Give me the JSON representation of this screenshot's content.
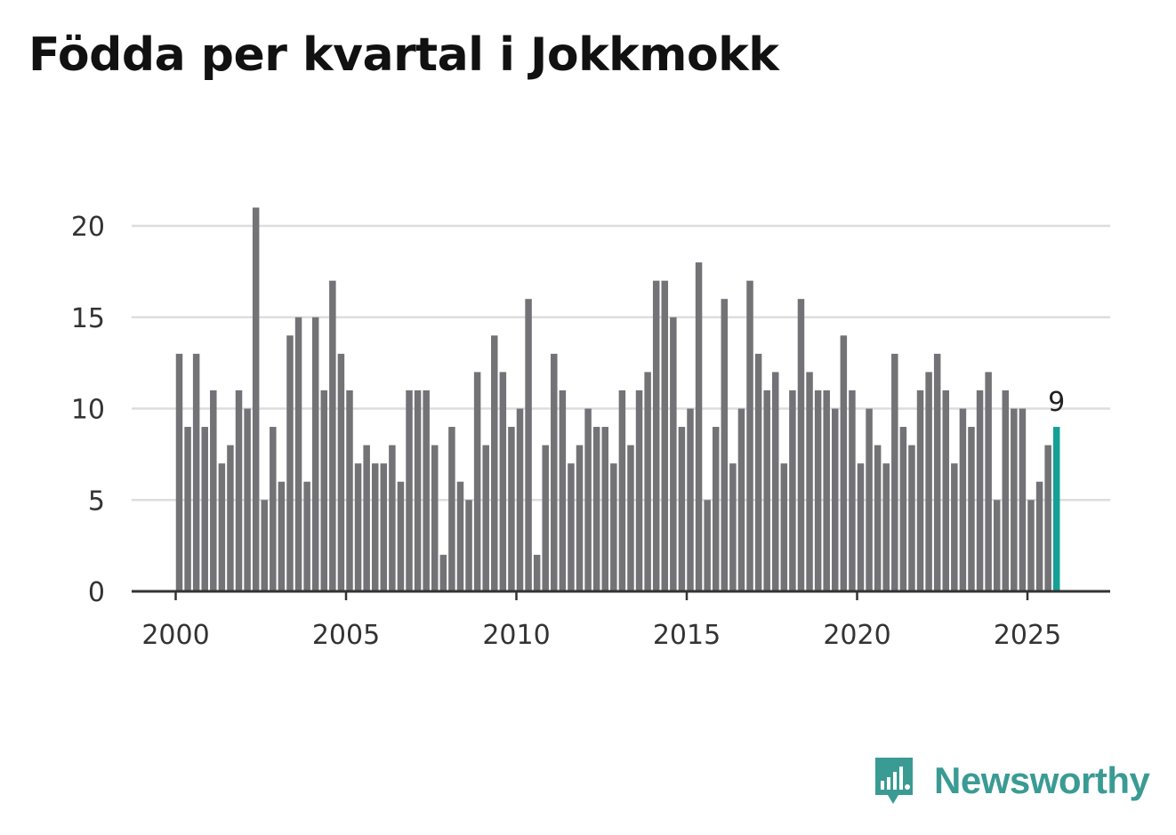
{
  "title": "Födda per kvartal i Jokkmokk",
  "brand": {
    "name": "Newsworthy",
    "color": "#3a9b94"
  },
  "chart_data": {
    "type": "bar",
    "title": "Födda per kvartal i Jokkmokk",
    "xlabel": "",
    "ylabel": "",
    "ylim": [
      0,
      21
    ],
    "yticks": [
      0,
      5,
      10,
      15,
      20
    ],
    "xticks": [
      2000,
      2005,
      2010,
      2015,
      2020,
      2025
    ],
    "grid": true,
    "colors": {
      "bar": "#737276",
      "highlight": "#14a096",
      "grid": "#dddddd",
      "axis": "#333333"
    },
    "categories": [
      "2000 Q1",
      "2000 Q2",
      "2000 Q3",
      "2000 Q4",
      "2001 Q1",
      "2001 Q2",
      "2001 Q3",
      "2001 Q4",
      "2002 Q1",
      "2002 Q2",
      "2002 Q3",
      "2002 Q4",
      "2003 Q1",
      "2003 Q2",
      "2003 Q3",
      "2003 Q4",
      "2004 Q1",
      "2004 Q2",
      "2004 Q3",
      "2004 Q4",
      "2005 Q1",
      "2005 Q2",
      "2005 Q3",
      "2005 Q4",
      "2006 Q1",
      "2006 Q2",
      "2006 Q3",
      "2006 Q4",
      "2007 Q1",
      "2007 Q2",
      "2007 Q3",
      "2007 Q4",
      "2008 Q1",
      "2008 Q2",
      "2008 Q3",
      "2008 Q4",
      "2009 Q1",
      "2009 Q2",
      "2009 Q3",
      "2009 Q4",
      "2010 Q1",
      "2010 Q2",
      "2010 Q3",
      "2010 Q4",
      "2011 Q1",
      "2011 Q2",
      "2011 Q3",
      "2011 Q4",
      "2012 Q1",
      "2012 Q2",
      "2012 Q3",
      "2012 Q4",
      "2013 Q1",
      "2013 Q2",
      "2013 Q3",
      "2013 Q4",
      "2014 Q1",
      "2014 Q2",
      "2014 Q3",
      "2014 Q4",
      "2015 Q1",
      "2015 Q2",
      "2015 Q3",
      "2015 Q4",
      "2016 Q1",
      "2016 Q2",
      "2016 Q3",
      "2016 Q4",
      "2017 Q1",
      "2017 Q2",
      "2017 Q3",
      "2017 Q4",
      "2018 Q1",
      "2018 Q2",
      "2018 Q3",
      "2018 Q4",
      "2019 Q1",
      "2019 Q2",
      "2019 Q3",
      "2019 Q4",
      "2020 Q1",
      "2020 Q2",
      "2020 Q3",
      "2020 Q4",
      "2021 Q1",
      "2021 Q2",
      "2021 Q3",
      "2021 Q4",
      "2022 Q1",
      "2022 Q2",
      "2022 Q3",
      "2022 Q4",
      "2023 Q1",
      "2023 Q2",
      "2023 Q3",
      "2023 Q4",
      "2024 Q1",
      "2024 Q2",
      "2024 Q3",
      "2024 Q4",
      "2025 Q1",
      "2025 Q2",
      "2025 Q3",
      "2025 Q4"
    ],
    "values": [
      13,
      9,
      13,
      9,
      11,
      7,
      8,
      11,
      10,
      21,
      5,
      9,
      6,
      14,
      15,
      6,
      15,
      11,
      17,
      13,
      11,
      7,
      8,
      7,
      7,
      8,
      6,
      11,
      11,
      11,
      8,
      2,
      9,
      6,
      5,
      12,
      8,
      14,
      12,
      9,
      10,
      16,
      2,
      8,
      13,
      11,
      7,
      8,
      10,
      9,
      9,
      7,
      11,
      8,
      11,
      12,
      17,
      17,
      15,
      9,
      10,
      18,
      5,
      9,
      16,
      7,
      10,
      17,
      13,
      11,
      12,
      7,
      11,
      16,
      12,
      11,
      11,
      10,
      14,
      11,
      7,
      10,
      8,
      7,
      13,
      9,
      8,
      11,
      12,
      13,
      11,
      7,
      10,
      9,
      11,
      12,
      5,
      11,
      10,
      10,
      5,
      6,
      8,
      9
    ],
    "highlight_index": 103,
    "annotation": {
      "index": 103,
      "text": "9"
    }
  }
}
